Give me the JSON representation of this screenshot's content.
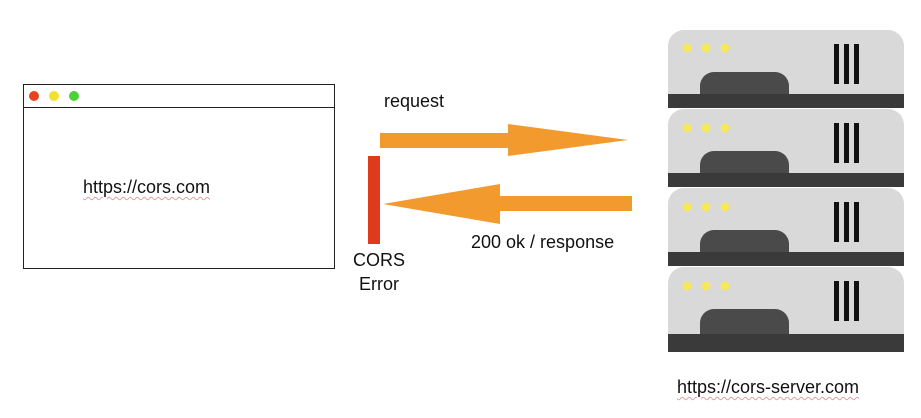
{
  "browser": {
    "url": "https://cors.com",
    "window_buttons": [
      "close",
      "minimize",
      "maximize"
    ]
  },
  "request_label": "request",
  "response_label": "200 ok / response",
  "cors_error": {
    "line1": "CORS",
    "line2": "Error"
  },
  "server": {
    "url": "https://cors-server.com",
    "unit_count": 4
  },
  "colors": {
    "arrow": "#f29a2e",
    "cors_bar": "#e03a1c",
    "dot_red": "#e8421f",
    "dot_yellow": "#f2e230",
    "dot_green": "#4cd137",
    "server_face": "#d9d9d9",
    "server_dark": "#4a4a4a",
    "server_lights": "#f6e85a"
  }
}
